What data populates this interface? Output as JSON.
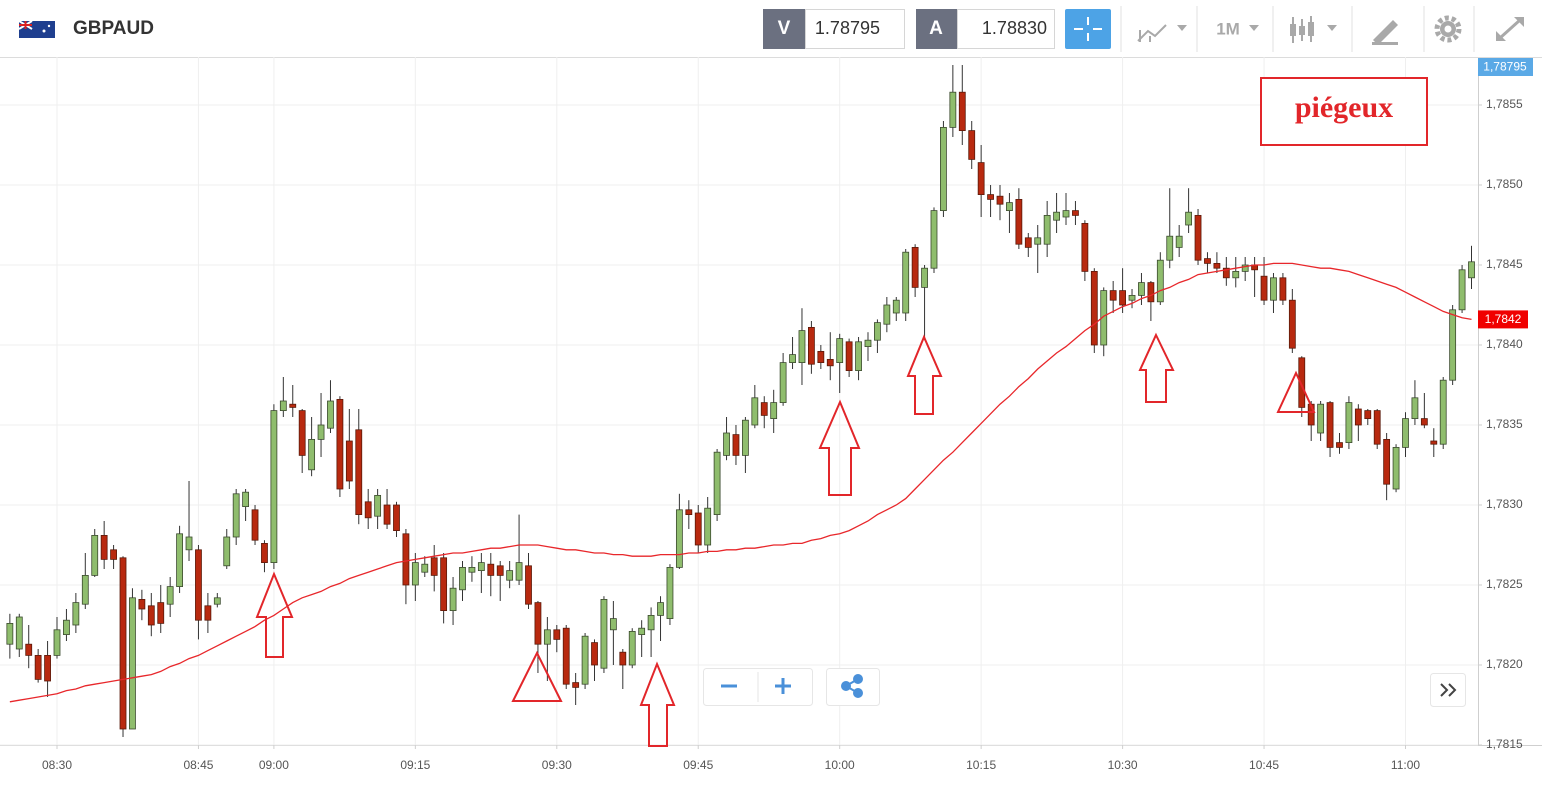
{
  "toolbar": {
    "symbol": "GBPAUD",
    "bid_label": "V",
    "bid": "1.78795",
    "ask_label": "A",
    "ask": "1.78830",
    "timeframe": "1M"
  },
  "chart_data": {
    "type": "candlestick",
    "annotation": "piégeux",
    "bid_badge": "1,78795",
    "last_price": {
      "value": 1.78416,
      "label": "1,7842"
    },
    "up_color": "#8fbd6d",
    "down_color": "#b8290f",
    "ylim": [
      1.7815,
      1.7858
    ],
    "yticks": [
      {
        "value": 1.7815,
        "label": "1,7815"
      },
      {
        "value": 1.782,
        "label": "1,7820"
      },
      {
        "value": 1.7825,
        "label": "1,7825"
      },
      {
        "value": 1.783,
        "label": "1,7830"
      },
      {
        "value": 1.7835,
        "label": "1,7835"
      },
      {
        "value": 1.784,
        "label": "1,7840"
      },
      {
        "value": 1.7845,
        "label": "1,7845"
      },
      {
        "value": 1.785,
        "label": "1,7850"
      },
      {
        "value": 1.7855,
        "label": "1,7855"
      }
    ],
    "grid": true,
    "categories": [
      null,
      null,
      null,
      null,
      null,
      "08:30",
      null,
      null,
      null,
      null,
      null,
      null,
      null,
      null,
      null,
      null,
      null,
      null,
      null,
      null,
      "08:45",
      null,
      null,
      null,
      null,
      null,
      null,
      null,
      "09:00",
      null,
      null,
      null,
      null,
      null,
      null,
      null,
      null,
      null,
      null,
      null,
      null,
      null,
      null,
      "09:15",
      null,
      null,
      null,
      null,
      null,
      null,
      null,
      null,
      null,
      null,
      null,
      null,
      null,
      null,
      "09:30",
      null,
      null,
      null,
      null,
      null,
      null,
      null,
      null,
      null,
      null,
      null,
      null,
      null,
      null,
      "09:45",
      null,
      null,
      null,
      null,
      null,
      null,
      null,
      null,
      null,
      null,
      null,
      null,
      null,
      null,
      "10:00",
      null,
      null,
      null,
      null,
      null,
      null,
      null,
      null,
      null,
      null,
      null,
      null,
      null,
      null,
      "10:15",
      null,
      null,
      null,
      null,
      null,
      null,
      null,
      null,
      null,
      null,
      null,
      null,
      null,
      null,
      "10:30",
      null,
      null,
      null,
      null,
      null,
      null,
      null,
      null,
      null,
      null,
      null,
      null,
      null,
      null,
      "10:45",
      null,
      null,
      null,
      null,
      null,
      null,
      null,
      null,
      null,
      null,
      null,
      null,
      null,
      null,
      "11:00",
      null,
      null,
      null,
      null,
      null,
      null,
      null
    ],
    "open": [
      1.78213,
      1.7821,
      1.78213,
      1.78206,
      1.78206,
      1.78206,
      1.78219,
      1.78225,
      1.78238,
      1.78256,
      1.78281,
      1.78272,
      1.78267,
      1.7816,
      1.78241,
      1.78237,
      1.78239,
      1.78238,
      1.78249,
      1.78272,
      1.78272,
      1.78237,
      1.78238,
      1.78262,
      1.7828,
      1.78299,
      1.78297,
      1.78276,
      1.78264,
      1.78359,
      1.78363,
      1.78359,
      1.78322,
      1.78341,
      1.78348,
      1.78366,
      1.7834,
      1.78347,
      1.78302,
      1.78293,
      1.783,
      1.783,
      1.78282,
      1.7825,
      1.78258,
      1.78267,
      1.78267,
      1.78234,
      1.78247,
      1.78258,
      1.78259,
      1.78263,
      1.78262,
      1.78253,
      1.78253,
      1.78262,
      1.78239,
      1.78213,
      1.78222,
      1.78223,
      1.78189,
      1.78188,
      1.78214,
      1.78198,
      1.78222,
      1.78208,
      1.782,
      1.78219,
      1.78222,
      1.78231,
      1.78229,
      1.78261,
      1.78297,
      1.78295,
      1.78275,
      1.78294,
      1.78331,
      1.78344,
      1.78331,
      1.7835,
      1.78364,
      1.78354,
      1.78364,
      1.78389,
      1.78389,
      1.78411,
      1.78396,
      1.78391,
      1.78389,
      1.78402,
      1.78384,
      1.78399,
      1.78403,
      1.78413,
      1.7842,
      1.7842,
      1.78461,
      1.78436,
      1.78448,
      1.78484,
      1.78536,
      1.78558,
      1.78534,
      1.78514,
      1.78494,
      1.78493,
      1.78484,
      1.78491,
      1.78467,
      1.78463,
      1.78463,
      1.78478,
      1.7848,
      1.78484,
      1.78476,
      1.78446,
      1.784,
      1.78434,
      1.78434,
      1.78428,
      1.78431,
      1.78439,
      1.78427,
      1.78453,
      1.78461,
      1.78475,
      1.78481,
      1.78454,
      1.78451,
      1.78448,
      1.78442,
      1.78446,
      1.7845,
      1.78443,
      1.78428,
      1.78442,
      1.78428,
      1.78392,
      1.78363,
      1.78345,
      1.78364,
      1.78339,
      1.78339,
      1.7836,
      1.78359,
      1.78359,
      1.78341,
      1.7831,
      1.78336,
      1.78354,
      1.78354,
      1.7834,
      1.78338,
      1.78378,
      1.78422,
      1.78442
    ],
    "high": [
      1.78232,
      1.78232,
      1.78225,
      1.7821,
      1.78215,
      1.7823,
      1.78235,
      1.78245,
      1.7827,
      1.78285,
      1.7829,
      1.78275,
      1.78268,
      1.78248,
      1.78247,
      1.78245,
      1.7825,
      1.78255,
      1.78287,
      1.78315,
      1.78275,
      1.78245,
      1.78245,
      1.78285,
      1.7831,
      1.7831,
      1.783,
      1.78278,
      1.78363,
      1.7838,
      1.78375,
      1.7836,
      1.78355,
      1.7837,
      1.78378,
      1.78368,
      1.7836,
      1.7836,
      1.7831,
      1.7831,
      1.7831,
      1.78302,
      1.78285,
      1.7827,
      1.78268,
      1.78275,
      1.7827,
      1.78255,
      1.78265,
      1.78268,
      1.7827,
      1.7827,
      1.78265,
      1.78265,
      1.78294,
      1.7827,
      1.7824,
      1.7823,
      1.78225,
      1.78225,
      1.78195,
      1.7822,
      1.78216,
      1.78243,
      1.7824,
      1.7821,
      1.78223,
      1.78228,
      1.78236,
      1.78243,
      1.78263,
      1.78307,
      1.78303,
      1.783,
      1.78305,
      1.78335,
      1.78355,
      1.7835,
      1.78355,
      1.78375,
      1.78368,
      1.78372,
      1.78395,
      1.78405,
      1.78423,
      1.78415,
      1.784,
      1.78408,
      1.78407,
      1.78404,
      1.78405,
      1.78408,
      1.78416,
      1.7843,
      1.7843,
      1.7846,
      1.78463,
      1.7845,
      1.78486,
      1.7854,
      1.78575,
      1.78575,
      1.7854,
      1.78525,
      1.785,
      1.785,
      1.78495,
      1.78498,
      1.7847,
      1.78475,
      1.7849,
      1.78495,
      1.78495,
      1.7849,
      1.78478,
      1.78448,
      1.78436,
      1.7844,
      1.78448,
      1.78435,
      1.78445,
      1.7844,
      1.78458,
      1.78498,
      1.78475,
      1.78498,
      1.78485,
      1.78458,
      1.78458,
      1.78455,
      1.78455,
      1.78455,
      1.78455,
      1.78455,
      1.78445,
      1.78445,
      1.78435,
      1.78393,
      1.78365,
      1.78365,
      1.78365,
      1.78345,
      1.78368,
      1.78363,
      1.7836,
      1.7836,
      1.78345,
      1.78338,
      1.78358,
      1.78378,
      1.7837,
      1.78348,
      1.7838,
      1.78425,
      1.7845,
      1.78462
    ],
    "low": [
      1.78204,
      1.78205,
      1.78198,
      1.78189,
      1.7818,
      1.78204,
      1.78215,
      1.7822,
      1.78235,
      1.78255,
      1.7826,
      1.7826,
      1.78155,
      1.7816,
      1.78228,
      1.78218,
      1.7822,
      1.7823,
      1.78245,
      1.78265,
      1.78216,
      1.7822,
      1.78236,
      1.7826,
      1.78275,
      1.7829,
      1.78275,
      1.78258,
      1.7826,
      1.78355,
      1.78355,
      1.7832,
      1.78318,
      1.7833,
      1.78345,
      1.78305,
      1.7831,
      1.78288,
      1.78285,
      1.78285,
      1.78285,
      1.7828,
      1.78238,
      1.7824,
      1.78255,
      1.78246,
      1.78226,
      1.78225,
      1.7824,
      1.78252,
      1.78245,
      1.78243,
      1.7824,
      1.78248,
      1.7825,
      1.78235,
      1.78195,
      1.7819,
      1.78208,
      1.78185,
      1.78175,
      1.78185,
      1.7819,
      1.78195,
      1.782,
      1.78185,
      1.78198,
      1.78205,
      1.78205,
      1.78215,
      1.78225,
      1.7826,
      1.78285,
      1.7827,
      1.7827,
      1.7829,
      1.78328,
      1.78325,
      1.7832,
      1.78348,
      1.78348,
      1.78345,
      1.78362,
      1.78385,
      1.78375,
      1.78382,
      1.78385,
      1.78378,
      1.7837,
      1.7838,
      1.78378,
      1.7839,
      1.78395,
      1.78408,
      1.78415,
      1.78415,
      1.7843,
      1.78403,
      1.78445,
      1.7848,
      1.7853,
      1.78525,
      1.7851,
      1.7848,
      1.7848,
      1.78478,
      1.7847,
      1.7846,
      1.78455,
      1.78445,
      1.78455,
      1.7847,
      1.78475,
      1.78475,
      1.7844,
      1.78395,
      1.78393,
      1.7842,
      1.7842,
      1.78423,
      1.78425,
      1.78415,
      1.78425,
      1.78448,
      1.78455,
      1.7847,
      1.7845,
      1.78445,
      1.78445,
      1.78437,
      1.78436,
      1.7844,
      1.7843,
      1.78425,
      1.7842,
      1.78425,
      1.78395,
      1.78355,
      1.7834,
      1.7834,
      1.7833,
      1.78332,
      1.78335,
      1.7834,
      1.7835,
      1.78335,
      1.78303,
      1.78308,
      1.7833,
      1.7835,
      1.78348,
      1.7833,
      1.78335,
      1.78375,
      1.7842,
      1.78435
    ],
    "close": [
      1.78226,
      1.7823,
      1.78206,
      1.78191,
      1.7819,
      1.78222,
      1.78228,
      1.78239,
      1.78256,
      1.78281,
      1.78266,
      1.78266,
      1.7816,
      1.78242,
      1.78235,
      1.78225,
      1.78226,
      1.78249,
      1.78282,
      1.7828,
      1.78228,
      1.78228,
      1.78242,
      1.7828,
      1.78307,
      1.78308,
      1.78278,
      1.78264,
      1.78359,
      1.78365,
      1.78361,
      1.78331,
      1.78341,
      1.7835,
      1.78365,
      1.7831,
      1.78315,
      1.78294,
      1.78292,
      1.78306,
      1.78288,
      1.78284,
      1.7825,
      1.78264,
      1.78263,
      1.78256,
      1.78234,
      1.78248,
      1.78261,
      1.78261,
      1.78264,
      1.78256,
      1.78256,
      1.78259,
      1.78264,
      1.78238,
      1.78213,
      1.78222,
      1.78216,
      1.78188,
      1.78186,
      1.78218,
      1.782,
      1.78241,
      1.78229,
      1.782,
      1.78221,
      1.78223,
      1.78231,
      1.78239,
      1.78261,
      1.78297,
      1.78294,
      1.78275,
      1.78298,
      1.78333,
      1.78345,
      1.78331,
      1.78353,
      1.78367,
      1.78356,
      1.78364,
      1.78389,
      1.78394,
      1.78409,
      1.78388,
      1.78389,
      1.78387,
      1.78404,
      1.78384,
      1.78402,
      1.78403,
      1.78414,
      1.78425,
      1.78428,
      1.78458,
      1.78436,
      1.78448,
      1.78484,
      1.78536,
      1.78558,
      1.78534,
      1.78516,
      1.78494,
      1.78491,
      1.78488,
      1.78489,
      1.78463,
      1.78461,
      1.78467,
      1.78481,
      1.78483,
      1.78484,
      1.78481,
      1.78446,
      1.784,
      1.78434,
      1.78428,
      1.78425,
      1.78431,
      1.78439,
      1.78427,
      1.78453,
      1.78468,
      1.78468,
      1.78483,
      1.78453,
      1.78451,
      1.78448,
      1.78442,
      1.78446,
      1.7845,
      1.78447,
      1.78428,
      1.78442,
      1.78428,
      1.78398,
      1.78361,
      1.7835,
      1.78363,
      1.78336,
      1.78336,
      1.78364,
      1.7835,
      1.78354,
      1.78338,
      1.78313,
      1.78336,
      1.78354,
      1.78367,
      1.7835,
      1.78338,
      1.78378,
      1.78422,
      1.78447,
      1.78452
    ],
    "moving_average": {
      "color": "#e8272b",
      "values": [
        1.78177,
        1.78178,
        1.78179,
        1.7818,
        1.78181,
        1.78182,
        1.78184,
        1.78185,
        1.78187,
        1.78188,
        1.78189,
        1.7819,
        1.78191,
        1.78192,
        1.78193,
        1.78194,
        1.78196,
        1.78199,
        1.78201,
        1.78204,
        1.78206,
        1.78209,
        1.78212,
        1.78215,
        1.78218,
        1.78221,
        1.78224,
        1.78228,
        1.78231,
        1.78235,
        1.78239,
        1.78242,
        1.78244,
        1.78246,
        1.78249,
        1.78251,
        1.78254,
        1.78256,
        1.78258,
        1.7826,
        1.78262,
        1.78264,
        1.78265,
        1.78266,
        1.78267,
        1.78268,
        1.78269,
        1.7827,
        1.7827,
        1.78271,
        1.78272,
        1.78273,
        1.78273,
        1.78274,
        1.78275,
        1.78275,
        1.78275,
        1.78274,
        1.78273,
        1.78272,
        1.78272,
        1.78271,
        1.7827,
        1.7827,
        1.78269,
        1.78269,
        1.78268,
        1.78268,
        1.78268,
        1.78269,
        1.78269,
        1.78269,
        1.7827,
        1.7827,
        1.78271,
        1.78271,
        1.78272,
        1.78272,
        1.78273,
        1.78273,
        1.78274,
        1.78275,
        1.78275,
        1.78276,
        1.78276,
        1.78278,
        1.78279,
        1.78281,
        1.78282,
        1.78284,
        1.78287,
        1.7829,
        1.78294,
        1.78297,
        1.783,
        1.78304,
        1.7831,
        1.78316,
        1.78322,
        1.78328,
        1.78333,
        1.78339,
        1.78345,
        1.78351,
        1.78357,
        1.78363,
        1.78368,
        1.78374,
        1.78379,
        1.78385,
        1.7839,
        1.78395,
        1.78399,
        1.78404,
        1.78409,
        1.78413,
        1.78418,
        1.78421,
        1.78424,
        1.78426,
        1.78429,
        1.78431,
        1.78434,
        1.78436,
        1.78439,
        1.78441,
        1.78444,
        1.78445,
        1.78446,
        1.78447,
        1.78448,
        1.78449,
        1.7845,
        1.7845,
        1.78451,
        1.78451,
        1.78451,
        1.7845,
        1.78449,
        1.78448,
        1.78448,
        1.78447,
        1.78446,
        1.78444,
        1.78442,
        1.7844,
        1.78438,
        1.78436,
        1.78433,
        1.7843,
        1.78427,
        1.78424,
        1.78421,
        1.78419,
        1.78417,
        1.78416
      ]
    }
  }
}
